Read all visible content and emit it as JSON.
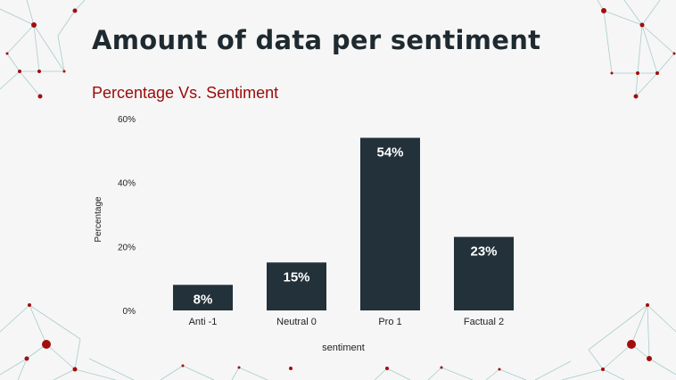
{
  "slide": {
    "title": "Amount of data per sentiment",
    "subtitle": "Percentage Vs. Sentiment"
  },
  "colors": {
    "bar": "#22313a",
    "title": "#1f2a30",
    "subtitle": "#9b0a0a",
    "accent_dot": "#a30d0d",
    "network_line": "#9fc6c6"
  },
  "chart_data": {
    "type": "bar",
    "categories": [
      "Anti -1",
      "Neutral 0",
      "Pro 1",
      "Factual 2"
    ],
    "values": [
      8,
      15,
      54,
      23
    ],
    "data_labels": [
      "8%",
      "15%",
      "54%",
      "23%"
    ],
    "xlabel": "sentiment",
    "ylabel": "Percentage",
    "ylim": [
      0,
      60
    ],
    "yticks": [
      "0%",
      "20%",
      "40%",
      "60%"
    ],
    "grid": false,
    "legend": "none"
  }
}
